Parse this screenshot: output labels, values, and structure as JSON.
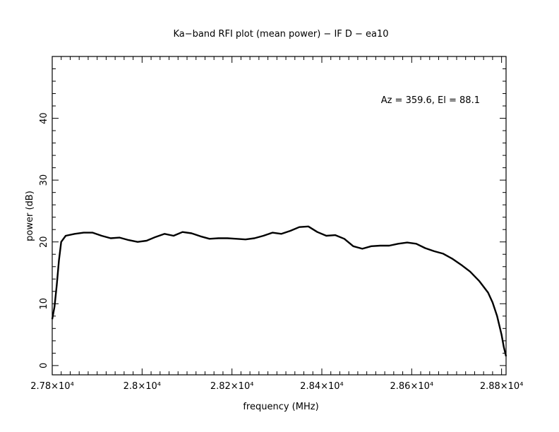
{
  "chart_data": {
    "type": "line",
    "title": "Ka−band RFI plot (mean power) − IF D − ea10",
    "xlabel": "frequency (MHz)",
    "ylabel": "power (dB)",
    "annotation": "Az = 359.6, El = 88.1",
    "xlim": [
      27800,
      28810
    ],
    "ylim": [
      -1.5,
      50
    ],
    "grid": false,
    "x_ticks": [
      {
        "value": 27800,
        "label": "2.78×10⁴"
      },
      {
        "value": 28000,
        "label": "2.8×10⁴"
      },
      {
        "value": 28200,
        "label": "2.82×10⁴"
      },
      {
        "value": 28400,
        "label": "2.84×10⁴"
      },
      {
        "value": 28600,
        "label": "2.86×10⁴"
      },
      {
        "value": 28800,
        "label": "2.88×10⁴"
      }
    ],
    "y_ticks": [
      {
        "value": 0,
        "label": "0"
      },
      {
        "value": 10,
        "label": "10"
      },
      {
        "value": 20,
        "label": "20"
      },
      {
        "value": 30,
        "label": "30"
      },
      {
        "value": 40,
        "label": "40"
      }
    ],
    "series": [
      {
        "color": "#000000",
        "x": [
          27800,
          27805,
          27810,
          27815,
          27820,
          27830,
          27850,
          27870,
          27890,
          27910,
          27930,
          27950,
          27970,
          27990,
          28010,
          28030,
          28050,
          28070,
          28090,
          28110,
          28130,
          28150,
          28170,
          28190,
          28210,
          28230,
          28250,
          28270,
          28290,
          28310,
          28330,
          28350,
          28370,
          28390,
          28410,
          28430,
          28450,
          28470,
          28490,
          28510,
          28530,
          28550,
          28570,
          28590,
          28610,
          28630,
          28650,
          28670,
          28690,
          28710,
          28730,
          28750,
          28770,
          28780,
          28790,
          28800,
          28805,
          28810
        ],
        "y": [
          7.5,
          9.5,
          13,
          17,
          20,
          21,
          21.3,
          21.5,
          21.5,
          21,
          20.6,
          20.7,
          20.3,
          20,
          20.2,
          20.8,
          21.3,
          21,
          21.6,
          21.4,
          20.9,
          20.5,
          20.6,
          20.6,
          20.5,
          20.4,
          20.6,
          21,
          21.5,
          21.3,
          21.8,
          22.4,
          22.5,
          21.6,
          21,
          21.1,
          20.5,
          19.3,
          18.9,
          19.3,
          19.4,
          19.4,
          19.7,
          19.9,
          19.7,
          19,
          18.5,
          18.1,
          17.3,
          16.3,
          15.2,
          13.7,
          11.8,
          10.2,
          8,
          5,
          3,
          1.5
        ]
      }
    ]
  }
}
